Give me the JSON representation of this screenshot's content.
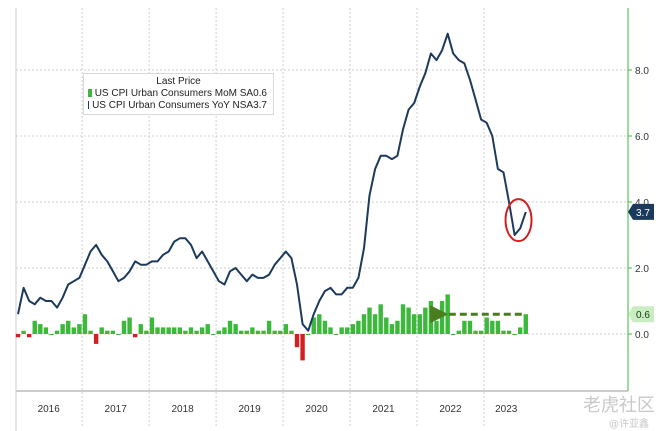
{
  "chart_data": {
    "type": "line",
    "legend_title": "Last Price",
    "y_ticks": [
      "8.0",
      "6.0",
      "4.0",
      "2.0",
      "0.0"
    ],
    "year_labels": [
      "2016",
      "2017",
      "2018",
      "2019",
      "2020",
      "2021",
      "2022",
      "2023"
    ],
    "ylim": [
      -1.6,
      9.6
    ],
    "grid": true,
    "legend_placement": "top-left",
    "series": [
      {
        "name": "US CPI Urban Consumers MoM SA",
        "last_value": "0.6",
        "color": "#3cb93c",
        "negative_color": "#d22020",
        "type": "bar",
        "values": [
          -0.1,
          0.1,
          -0.1,
          0.4,
          0.3,
          0.2,
          0.0,
          0.1,
          0.3,
          0.4,
          0.2,
          0.3,
          0.6,
          0.1,
          -0.3,
          0.2,
          0.1,
          0.1,
          0.0,
          0.4,
          0.5,
          -0.1,
          0.3,
          0.1,
          0.5,
          0.2,
          0.2,
          0.2,
          0.2,
          0.2,
          0.1,
          0.2,
          0.1,
          0.2,
          0.3,
          0.0,
          0.1,
          0.2,
          0.4,
          0.3,
          0.1,
          0.1,
          0.2,
          0.1,
          0.1,
          0.4,
          0.1,
          0.1,
          0.3,
          0.1,
          -0.4,
          -0.8,
          0.0,
          0.5,
          0.6,
          0.4,
          0.2,
          0.0,
          0.2,
          0.2,
          0.3,
          0.4,
          0.6,
          0.8,
          0.6,
          0.9,
          0.5,
          0.3,
          0.4,
          0.9,
          0.8,
          0.6,
          0.6,
          0.8,
          1.0,
          0.4,
          1.0,
          1.2,
          0.0,
          0.1,
          0.4,
          0.4,
          0.1,
          0.1,
          0.5,
          0.4,
          0.4,
          0.1,
          0.1,
          0.0,
          0.2,
          0.6
        ],
        "arrow_annotation": true
      },
      {
        "name": "US CPI Urban Consumers YoY NSA",
        "last_value": "3.7",
        "color": "#1b3a5c",
        "type": "line",
        "values": [
          0.6,
          1.4,
          1.0,
          0.9,
          1.1,
          1.0,
          1.0,
          0.8,
          1.1,
          1.5,
          1.6,
          1.7,
          2.1,
          2.5,
          2.7,
          2.4,
          2.2,
          1.9,
          1.6,
          1.7,
          1.9,
          2.2,
          2.1,
          2.1,
          2.2,
          2.2,
          2.4,
          2.5,
          2.8,
          2.9,
          2.9,
          2.7,
          2.3,
          2.5,
          2.2,
          1.9,
          1.6,
          1.5,
          1.9,
          2.0,
          1.8,
          1.6,
          1.8,
          1.7,
          1.7,
          1.8,
          2.1,
          2.3,
          2.5,
          2.3,
          1.5,
          0.3,
          0.1,
          0.6,
          1.0,
          1.3,
          1.4,
          1.2,
          1.2,
          1.4,
          1.4,
          1.7,
          2.6,
          4.2,
          5.0,
          5.4,
          5.4,
          5.3,
          5.4,
          6.2,
          6.8,
          7.0,
          7.5,
          7.9,
          8.5,
          8.3,
          8.6,
          9.1,
          8.5,
          8.3,
          8.2,
          7.7,
          7.1,
          6.5,
          6.4,
          6.0,
          5.0,
          4.9,
          4.0,
          3.0,
          3.2,
          3.7
        ],
        "circle_annotation": true
      }
    ]
  },
  "watermark": {
    "main": "老虎社区",
    "sub": "@许亚鑫"
  }
}
